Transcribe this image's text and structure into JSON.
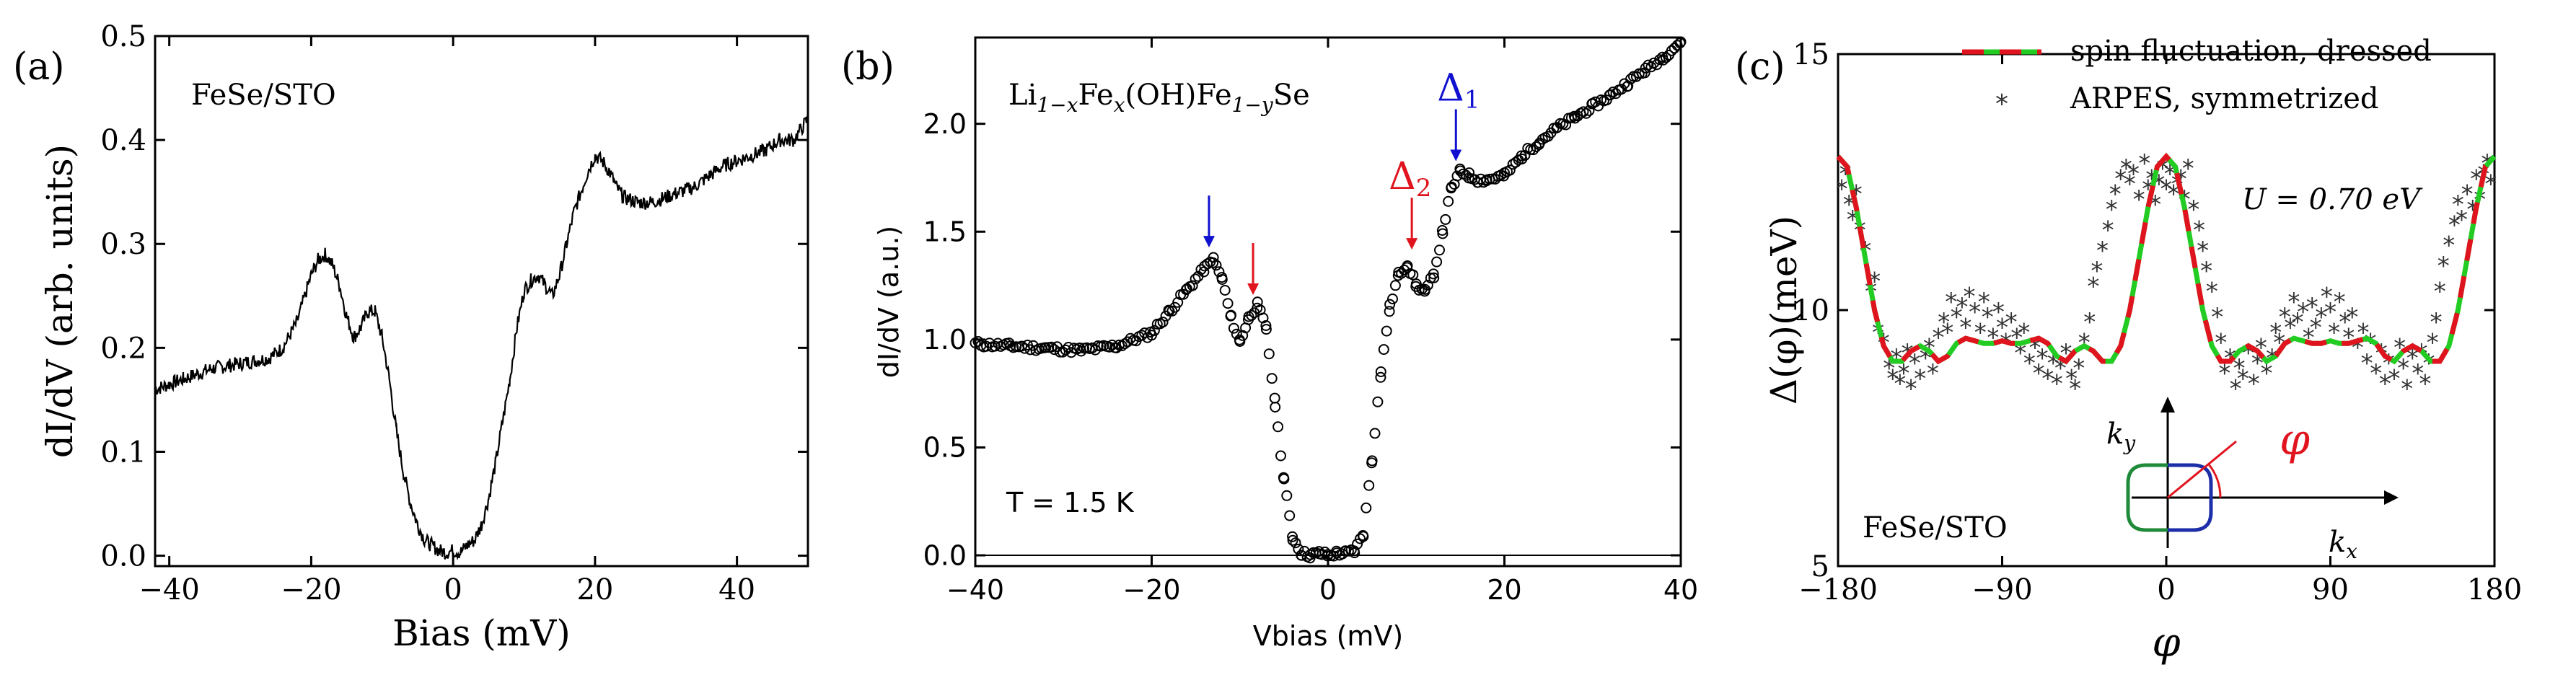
{
  "colors": {
    "black": "#000000",
    "blue": "#1010d0",
    "red": "#e0141e",
    "green": "#22cc22",
    "ring_blue": "#1c2fa8",
    "ring_green": "#1f8a3a"
  },
  "chart_data": [
    {
      "panel": "(a)",
      "type": "line",
      "sample_label": "FeSe/STO",
      "xlabel": "Bias (mV)",
      "ylabel": "dI/dV (arb. units)",
      "xlim": [
        -42,
        50
      ],
      "ylim": [
        -0.01,
        0.5
      ],
      "xticks": [
        "−40",
        "−20",
        "0",
        "20",
        "40"
      ],
      "xtick_values": [
        -40,
        -20,
        0,
        20,
        40
      ],
      "yticks": [
        "0.0",
        "0.1",
        "0.2",
        "0.3",
        "0.4",
        "0.5"
      ],
      "ytick_values": [
        0,
        0.1,
        0.2,
        0.3,
        0.4,
        0.5
      ],
      "series": [
        {
          "name": "dI/dV",
          "x": [
            -42,
            -38,
            -34,
            -30,
            -26,
            -24,
            -22,
            -20,
            -19,
            -18,
            -17,
            -16,
            -15,
            -14,
            -13,
            -12,
            -11,
            -10,
            -9,
            -8,
            -7,
            -6,
            -5,
            -4,
            -3,
            -2,
            -1,
            0,
            1,
            2,
            3,
            4,
            5,
            6,
            7,
            8,
            9,
            10,
            11,
            12,
            13,
            14,
            15,
            16,
            17,
            18,
            19,
            20,
            21,
            22,
            23,
            24,
            26,
            28,
            30,
            32,
            34,
            36,
            38,
            40,
            42,
            44,
            46,
            48,
            50
          ],
          "y": [
            0.16,
            0.17,
            0.18,
            0.185,
            0.19,
            0.2,
            0.225,
            0.27,
            0.285,
            0.29,
            0.28,
            0.26,
            0.23,
            0.21,
            0.22,
            0.235,
            0.235,
            0.21,
            0.17,
            0.12,
            0.08,
            0.05,
            0.03,
            0.015,
            0.01,
            0.005,
            0.003,
            0.005,
            0.003,
            0.01,
            0.015,
            0.03,
            0.055,
            0.09,
            0.13,
            0.17,
            0.22,
            0.255,
            0.265,
            0.27,
            0.26,
            0.25,
            0.27,
            0.3,
            0.33,
            0.35,
            0.37,
            0.385,
            0.38,
            0.37,
            0.355,
            0.345,
            0.34,
            0.34,
            0.345,
            0.35,
            0.355,
            0.365,
            0.375,
            0.38,
            0.385,
            0.39,
            0.4,
            0.4,
            0.42
          ]
        }
      ]
    },
    {
      "panel": "(b)",
      "type": "scatter",
      "sample_label": "Li1−xFex(OH)Fe1−ySe",
      "temperature_label": "T = 1.5 K",
      "xlabel": "Vbias (mV)",
      "ylabel": "dI/dV (a.u.)",
      "xlim": [
        -40,
        40
      ],
      "ylim": [
        -0.05,
        2.4
      ],
      "xticks": [
        "−40",
        "−20",
        "0",
        "20",
        "40"
      ],
      "xtick_values": [
        -40,
        -20,
        0,
        20,
        40
      ],
      "yticks": [
        "0.0",
        "0.5",
        "1.0",
        "1.5",
        "2.0"
      ],
      "ytick_values": [
        0,
        0.5,
        1.0,
        1.5,
        2.0
      ],
      "annotations": [
        {
          "label": "Δ1",
          "x": 14.5,
          "y": 1.78,
          "color": "blue"
        },
        {
          "label": "Δ2",
          "x": 9.5,
          "y": 1.37,
          "color": "red"
        },
        {
          "label": "",
          "x": -13.5,
          "y": 1.38,
          "color": "blue"
        },
        {
          "label": "",
          "x": -8.5,
          "y": 1.16,
          "color": "red"
        }
      ],
      "series": [
        {
          "name": "dI/dV",
          "x": [
            -40,
            -36,
            -32,
            -28,
            -24,
            -20,
            -18,
            -16,
            -14,
            -13,
            -12,
            -11,
            -10,
            -9,
            -8,
            -7,
            -6,
            -5,
            -4,
            -3,
            -2,
            -1,
            0,
            1,
            2,
            3,
            4,
            5,
            6,
            7,
            8,
            9,
            10,
            11,
            12,
            13,
            14,
            15,
            16,
            17,
            18,
            20,
            22,
            24,
            26,
            28,
            30,
            32,
            34,
            36,
            38,
            40
          ],
          "y": [
            0.98,
            0.97,
            0.96,
            0.95,
            0.97,
            1.03,
            1.13,
            1.23,
            1.33,
            1.37,
            1.28,
            1.1,
            0.99,
            1.1,
            1.16,
            1.05,
            0.7,
            0.35,
            0.08,
            0.01,
            0.0,
            0.01,
            0.0,
            0.01,
            0.01,
            0.02,
            0.1,
            0.45,
            0.85,
            1.15,
            1.3,
            1.35,
            1.25,
            1.22,
            1.3,
            1.5,
            1.7,
            1.78,
            1.76,
            1.74,
            1.74,
            1.76,
            1.85,
            1.92,
            1.98,
            2.03,
            2.08,
            2.13,
            2.19,
            2.25,
            2.31,
            2.38
          ]
        }
      ]
    },
    {
      "panel": "(c)",
      "type": "line",
      "sample_label": "FeSe/STO",
      "parameter_label": "U = 0.70 eV",
      "xlabel": "φ",
      "ylabel": "Δ(φ)(meV)",
      "xlim": [
        -180,
        180
      ],
      "ylim": [
        5,
        15
      ],
      "xticks": [
        "−180",
        "−90",
        "0",
        "90",
        "180"
      ],
      "xtick_values": [
        -180,
        -90,
        0,
        90,
        180
      ],
      "yticks": [
        "5",
        "10",
        "15"
      ],
      "ytick_values": [
        5,
        10,
        15
      ],
      "legend": [
        {
          "label": "spin fluctuation, dressed",
          "style": "red-green dashed line"
        },
        {
          "label": "ARPES, symmetrized",
          "style": "asterisk markers"
        }
      ],
      "inset_labels": {
        "ky": "ky",
        "kx": "kx",
        "phi": "φ"
      },
      "series": [
        {
          "name": "spin fluctuation, dressed",
          "x": [
            -180,
            -175,
            -170,
            -165,
            -160,
            -155,
            -150,
            -145,
            -140,
            -135,
            -130,
            -125,
            -120,
            -115,
            -110,
            -105,
            -100,
            -95,
            -90,
            -85,
            -80,
            -75,
            -70,
            -65,
            -60,
            -55,
            -50,
            -45,
            -40,
            -35,
            -30,
            -25,
            -20,
            -15,
            -10,
            -5,
            0,
            5,
            10,
            15,
            20,
            25,
            30,
            35,
            40,
            45,
            50,
            55,
            60,
            65,
            70,
            75,
            80,
            85,
            90,
            95,
            100,
            105,
            110,
            115,
            120,
            125,
            130,
            135,
            140,
            145,
            150,
            155,
            160,
            165,
            170,
            175,
            180
          ],
          "y": [
            13.0,
            12.8,
            12.0,
            11.0,
            10.0,
            9.3,
            9.0,
            9.0,
            9.2,
            9.3,
            9.2,
            9.0,
            9.1,
            9.35,
            9.45,
            9.4,
            9.35,
            9.35,
            9.4,
            9.35,
            9.35,
            9.4,
            9.45,
            9.35,
            9.1,
            9.0,
            9.2,
            9.3,
            9.2,
            9.0,
            9.0,
            9.3,
            10.0,
            11.0,
            12.0,
            12.8,
            13.0,
            12.8,
            12.0,
            11.0,
            10.0,
            9.3,
            9.0,
            9.0,
            9.2,
            9.3,
            9.2,
            9.0,
            9.1,
            9.35,
            9.45,
            9.4,
            9.35,
            9.35,
            9.4,
            9.35,
            9.35,
            9.4,
            9.45,
            9.35,
            9.1,
            9.0,
            9.2,
            9.3,
            9.2,
            9.0,
            9.0,
            9.3,
            10.0,
            11.0,
            12.0,
            12.8,
            13.0
          ]
        },
        {
          "name": "ARPES, symmetrized",
          "x": [
            -178,
            -176,
            -174,
            -172,
            -170,
            -168,
            -165,
            -162,
            -160,
            -158,
            -155,
            -152,
            -150,
            -148,
            -146,
            -144,
            -142,
            -140,
            -138,
            -135,
            -132,
            -130,
            -128,
            -125,
            -122,
            -120,
            -118,
            -115,
            -112,
            -110,
            -108,
            -105,
            -102,
            -100,
            -98,
            -95,
            -92,
            -90,
            -88,
            -85,
            -82,
            -80,
            -78,
            -75,
            -72,
            -70,
            -68,
            -65,
            -62,
            -60,
            -58,
            -55,
            -52,
            -50,
            -48,
            -45,
            -42,
            -40,
            -38,
            -35,
            -32,
            -30,
            -28,
            -25,
            -22,
            -20,
            -18,
            -15,
            -12,
            -10,
            -8,
            -6,
            -4,
            -2,
            0,
            2,
            4,
            6,
            8,
            10,
            12,
            15,
            18,
            20,
            22,
            25,
            28,
            30,
            32,
            35,
            38,
            40,
            42,
            45,
            48,
            50,
            52,
            55,
            58,
            60,
            62,
            65,
            68,
            70,
            72,
            75,
            78,
            80,
            82,
            85,
            88,
            90,
            92,
            95,
            98,
            100,
            102,
            105,
            108,
            110,
            112,
            115,
            118,
            120,
            122,
            125,
            128,
            130,
            132,
            135,
            138,
            140,
            142,
            144,
            146,
            148,
            150,
            152,
            155,
            158,
            160,
            162,
            165,
            168,
            170,
            172,
            174,
            176,
            178
          ],
          "y": [
            12.4,
            12.7,
            12.1,
            11.8,
            12.3,
            11.6,
            11.2,
            10.4,
            10.6,
            9.6,
            9.4,
            8.9,
            8.7,
            9.1,
            8.6,
            8.8,
            9.2,
            8.5,
            9.0,
            8.7,
            9.1,
            9.3,
            8.8,
            9.5,
            9.8,
            9.6,
            10.2,
            9.9,
            10.1,
            9.7,
            10.3,
            10.0,
            9.6,
            10.2,
            9.9,
            9.5,
            10.0,
            9.7,
            9.4,
            9.8,
            9.5,
            9.2,
            9.6,
            9.0,
            9.3,
            8.8,
            9.1,
            8.7,
            9.0,
            8.6,
            8.9,
            9.2,
            8.7,
            8.5,
            8.9,
            9.4,
            9.8,
            10.5,
            10.8,
            11.2,
            11.6,
            12.0,
            12.3,
            12.6,
            12.8,
            12.5,
            12.7,
            12.2,
            12.9,
            12.4,
            12.6,
            12.1,
            12.5,
            12.8,
            12.4,
            12.7,
            12.3,
            12.5,
            12.6,
            12.2,
            12.8,
            12.0,
            11.6,
            11.2,
            10.8,
            10.4,
            9.9,
            9.4,
            8.8,
            9.1,
            8.5,
            8.9,
            8.7,
            9.2,
            8.6,
            9.0,
            9.3,
            8.8,
            9.1,
            9.6,
            9.4,
            9.9,
            9.7,
            10.2,
            9.8,
            10.0,
            9.5,
            10.1,
            9.7,
            9.9,
            10.3,
            10.0,
            9.6,
            10.2,
            9.8,
            9.5,
            9.9,
            9.3,
            9.6,
            9.0,
            9.4,
            8.8,
            9.2,
            8.6,
            9.0,
            8.7,
            9.3,
            8.9,
            8.5,
            9.1,
            8.8,
            9.2,
            8.6,
            9.0,
            9.4,
            9.8,
            10.4,
            10.9,
            11.3,
            11.7,
            12.1,
            11.8,
            12.3,
            12.0,
            12.6,
            12.2,
            12.7,
            12.9,
            12.5
          ]
        }
      ]
    }
  ]
}
